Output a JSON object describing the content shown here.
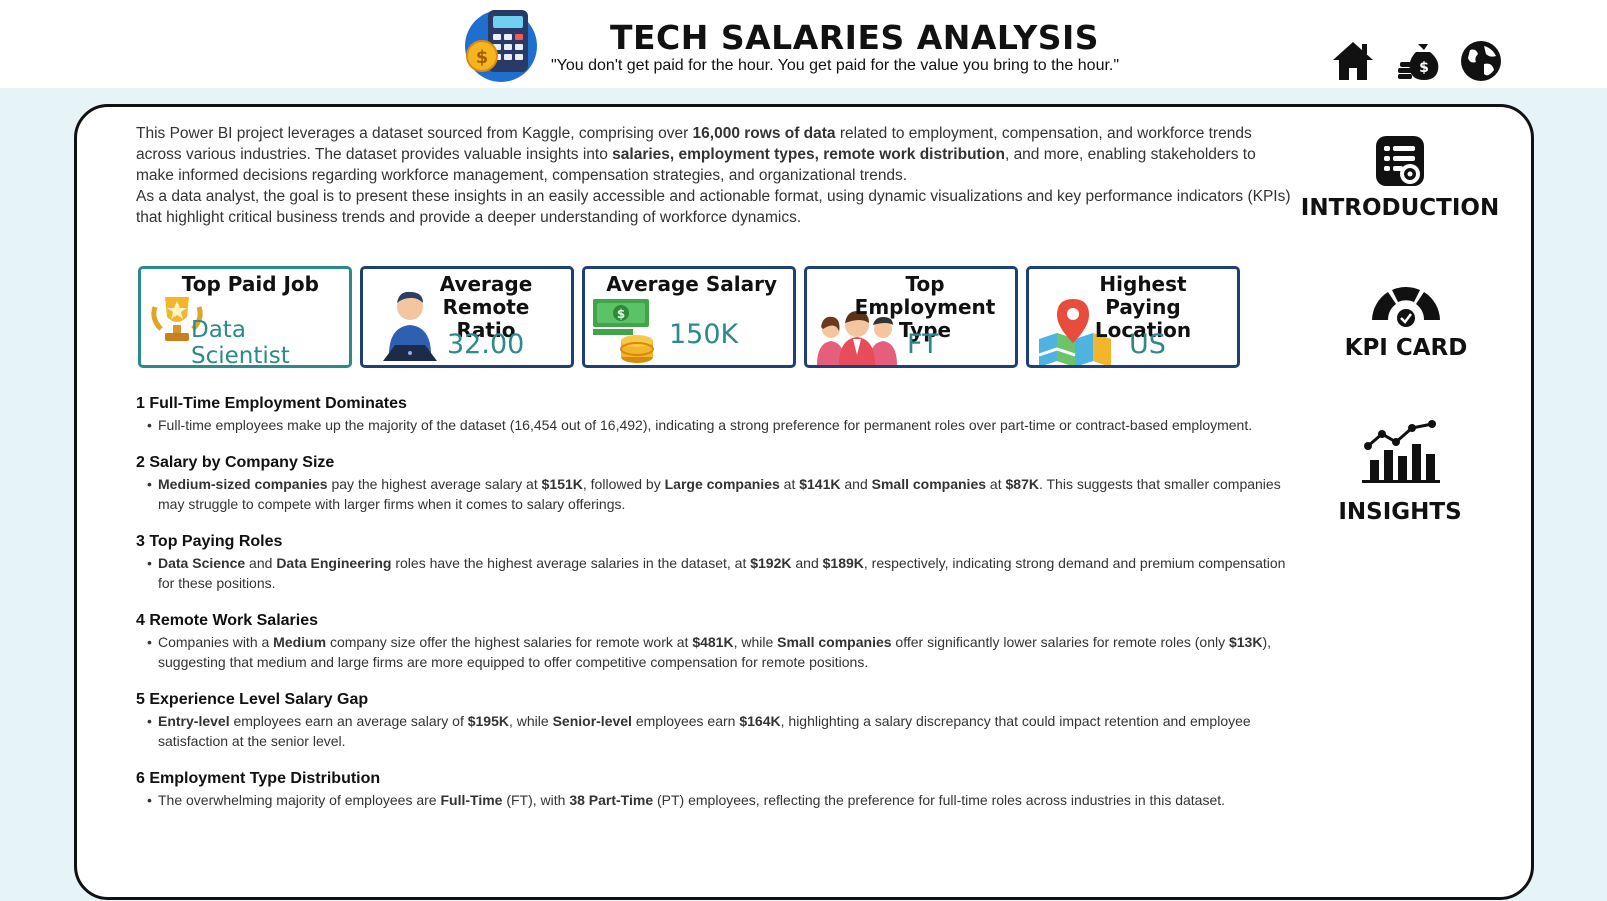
{
  "header": {
    "title": "TECH SALARIES ANALYSIS",
    "quote": "\"You don't get paid for the hour. You get paid for the value you bring to the hour.\""
  },
  "nav": [
    {
      "name": "home-icon"
    },
    {
      "name": "money-bag-icon"
    },
    {
      "name": "globe-icon"
    }
  ],
  "intro": {
    "p1_a": "This Power BI project leverages a dataset sourced from Kaggle, comprising over ",
    "p1_b": "16,000 rows of data",
    "p1_c": " related to employment, compensation, and workforce trends across various industries. The dataset provides valuable insights into ",
    "p1_d": "salaries, employment types, remote work distribution",
    "p1_e": ", and more, enabling stakeholders to make informed decisions regarding workforce management, compensation strategies, and organizational trends.",
    "p2": "As a data analyst, the goal is to present these insights in an easily accessible and actionable format, using dynamic visualizations and key performance indicators (KPIs) that highlight critical business trends and provide a deeper understanding of workforce dynamics."
  },
  "kpis": [
    {
      "title": "Top Paid Job",
      "value": "Data Scientist"
    },
    {
      "title": "Average Remote Ratio",
      "value": "32.00"
    },
    {
      "title": "Average Salary",
      "value": "150K"
    },
    {
      "title": "Top Employment Type",
      "value": "FT"
    },
    {
      "title": "Highest Paying Location",
      "value": "US"
    }
  ],
  "insights": [
    {
      "heading": "1 Full-Time Employment Dominates",
      "text": "Full-time employees make up the majority of the dataset (16,454 out of 16,492), indicating a strong preference for permanent roles over part-time or contract-based employment."
    },
    {
      "heading": "2 Salary by Company Size",
      "b1": "Medium-sized companies",
      "t1": " pay the highest average salary at ",
      "b2": "$151K",
      "t2": ", followed by ",
      "b3": "Large companies",
      "t3": " at ",
      "b4": "$141K",
      "t4": " and ",
      "b5": "Small companies",
      "t5": " at ",
      "b6": "$87K",
      "t6": ". This suggests that smaller companies may struggle to compete with larger firms when it comes to salary offerings."
    },
    {
      "heading": "3 Top Paying Roles",
      "b1": "Data Science",
      "t1": " and ",
      "b2": "Data Engineering",
      "t2": " roles have the highest average salaries in the dataset, at ",
      "b3": "$192K",
      "t3": " and ",
      "b4": "$189K",
      "t4": ", respectively, indicating strong demand and premium compensation for these positions."
    },
    {
      "heading": "4 Remote Work Salaries",
      "t0": "Companies with a ",
      "b1": "Medium",
      "t1": " company size offer the highest salaries for remote work at ",
      "b2": "$481K",
      "t2": ", while ",
      "b3": "Small companies",
      "t3": " offer significantly lower salaries for remote roles (only ",
      "b4": "$13K",
      "t4": "), suggesting that medium and large firms are more equipped to offer competitive compensation for remote positions."
    },
    {
      "heading": "5 Experience Level Salary Gap",
      "b1": "Entry-level",
      "t1": " employees earn an average salary of ",
      "b2": "$195K",
      "t2": ", while ",
      "b3": "Senior-level",
      "t3": " employees earn ",
      "b4": "$164K",
      "t4": ", highlighting a salary discrepancy that could impact retention and employee satisfaction at the senior level."
    },
    {
      "heading": "6 Employment Type Distribution",
      "t0": "The overwhelming majority of employees are ",
      "b1": "Full-Time",
      "t1": " (FT), with ",
      "b2": "38 Part-Time",
      "t2": " (PT) employees, reflecting the preference for full-time roles across industries in this dataset."
    }
  ],
  "side": {
    "intro_label": "INTRODUCTION",
    "kpi_label": "KPI CARD",
    "insights_label": "INSIGHTS"
  }
}
